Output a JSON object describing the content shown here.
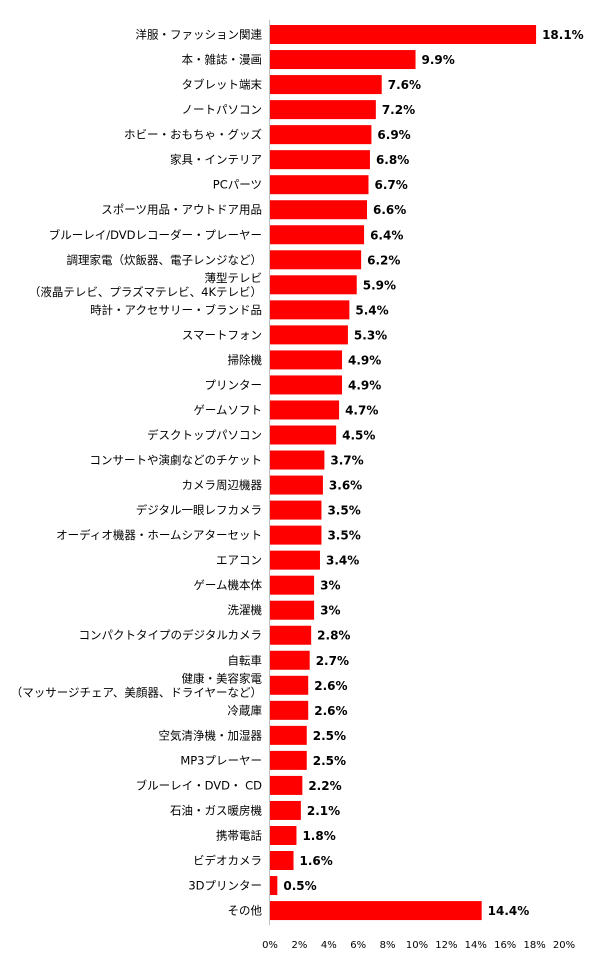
{
  "chart_data": {
    "type": "bar",
    "orientation": "horizontal",
    "bar_color": "#ff0000",
    "categories": [
      [
        "洋服・ファッション関連"
      ],
      [
        "本・雑誌・漫画"
      ],
      [
        "タブレット端末"
      ],
      [
        "ノートパソコン"
      ],
      [
        "ホビー・おもちゃ・グッズ"
      ],
      [
        "家具・インテリア"
      ],
      [
        "PCパーツ"
      ],
      [
        "スポーツ用品・アウトドア用品"
      ],
      [
        "ブルーレイ/DVDレコーダー・プレーヤー"
      ],
      [
        "調理家電（炊飯器、電子レンジなど）"
      ],
      [
        "薄型テレビ",
        "（液晶テレビ、プラズマテレビ、4Kテレビ）"
      ],
      [
        "時計・アクセサリー・ブランド品"
      ],
      [
        "スマートフォン"
      ],
      [
        "掃除機"
      ],
      [
        "プリンター"
      ],
      [
        "ゲームソフト"
      ],
      [
        "デスクトップパソコン"
      ],
      [
        "コンサートや演劇などのチケット"
      ],
      [
        "カメラ周辺機器"
      ],
      [
        "デジタル一眼レフカメラ"
      ],
      [
        "オーディオ機器・ホームシアターセット"
      ],
      [
        "エアコン"
      ],
      [
        "ゲーム機本体"
      ],
      [
        "洗濯機"
      ],
      [
        "コンパクトタイプのデジタルカメラ"
      ],
      [
        "自転車"
      ],
      [
        "健康・美容家電",
        "（マッサージチェア、美顔器、ドライヤーなど）"
      ],
      [
        "冷蔵庫"
      ],
      [
        "空気清浄機・加湿器"
      ],
      [
        "MP3プレーヤー"
      ],
      [
        "ブルーレイ・DVD・ CD"
      ],
      [
        "石油・ガス暖房機"
      ],
      [
        "携帯電話"
      ],
      [
        "ビデオカメラ"
      ],
      [
        "3Dプリンター"
      ],
      [
        "その他"
      ]
    ],
    "values": [
      18.1,
      9.9,
      7.6,
      7.2,
      6.9,
      6.8,
      6.7,
      6.6,
      6.4,
      6.2,
      5.9,
      5.4,
      5.3,
      4.9,
      4.9,
      4.7,
      4.5,
      3.7,
      3.6,
      3.5,
      3.5,
      3.4,
      3,
      3,
      2.8,
      2.7,
      2.6,
      2.6,
      2.5,
      2.5,
      2.2,
      2.1,
      1.8,
      1.6,
      0.5,
      14.4
    ],
    "value_labels": [
      "18.1%",
      "9.9%",
      "7.6%",
      "7.2%",
      "6.9%",
      "6.8%",
      "6.7%",
      "6.6%",
      "6.4%",
      "6.2%",
      "5.9%",
      "5.4%",
      "5.3%",
      "4.9%",
      "4.9%",
      "4.7%",
      "4.5%",
      "3.7%",
      "3.6%",
      "3.5%",
      "3.5%",
      "3.4%",
      "3%",
      "3%",
      "2.8%",
      "2.7%",
      "2.6%",
      "2.6%",
      "2.5%",
      "2.5%",
      "2.2%",
      "2.1%",
      "1.8%",
      "1.6%",
      "0.5%",
      "14.4%"
    ],
    "xlim": [
      0,
      20
    ],
    "xticks": [
      "0%",
      "2%",
      "4%",
      "6%",
      "8%",
      "10%",
      "12%",
      "14%",
      "16%",
      "18%",
      "20%"
    ],
    "title": "",
    "xlabel": "",
    "ylabel": "",
    "grid": false,
    "legend": false
  }
}
